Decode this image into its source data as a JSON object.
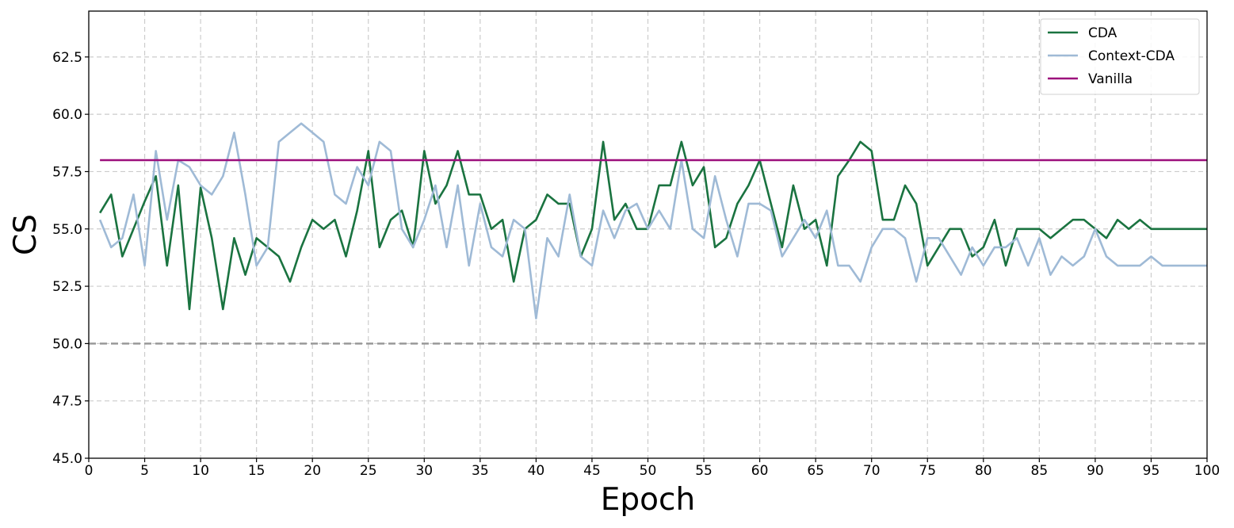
{
  "chart_data": {
    "type": "line",
    "xlabel": "Epoch",
    "ylabel": "CS",
    "xlim": [
      0,
      100
    ],
    "ylim": [
      45,
      64.5
    ],
    "xticks": [
      0,
      5,
      10,
      15,
      20,
      25,
      30,
      35,
      40,
      45,
      50,
      55,
      60,
      65,
      70,
      75,
      80,
      85,
      90,
      95,
      100
    ],
    "yticks": [
      45.0,
      47.5,
      50.0,
      52.5,
      55.0,
      57.5,
      60.0,
      62.5
    ],
    "ytick_labels": [
      "45.0",
      "47.5",
      "50.0",
      "52.5",
      "55.0",
      "57.5",
      "60.0",
      "62.5"
    ],
    "grid": true,
    "legend_position": "top-right",
    "reference_line": {
      "y": 50.0,
      "style": "dashed",
      "color": "#999999"
    },
    "series": [
      {
        "name": "CDA",
        "color": "#1a7340",
        "x": [
          1,
          2,
          3,
          4,
          5,
          6,
          7,
          8,
          9,
          10,
          11,
          12,
          13,
          14,
          15,
          16,
          17,
          18,
          19,
          20,
          21,
          22,
          23,
          24,
          25,
          26,
          27,
          28,
          29,
          30,
          31,
          32,
          33,
          34,
          35,
          36,
          37,
          38,
          39,
          40,
          41,
          42,
          43,
          44,
          45,
          46,
          47,
          48,
          49,
          50,
          51,
          52,
          53,
          54,
          55,
          56,
          57,
          58,
          59,
          60,
          61,
          62,
          63,
          64,
          65,
          66,
          67,
          68,
          69,
          70,
          71,
          72,
          73,
          74,
          75,
          76,
          77,
          78,
          79,
          80,
          81,
          82,
          83,
          84,
          85,
          86,
          87,
          88,
          89,
          90,
          91,
          92,
          93,
          94,
          95,
          96,
          97,
          98,
          99,
          100
        ],
        "values": [
          55.7,
          56.5,
          53.8,
          55.0,
          56.2,
          57.3,
          53.4,
          56.9,
          51.5,
          56.8,
          54.6,
          51.5,
          54.6,
          53.0,
          54.6,
          54.2,
          53.8,
          52.7,
          54.2,
          55.4,
          55.0,
          55.4,
          53.8,
          55.8,
          58.4,
          54.2,
          55.4,
          55.8,
          54.2,
          58.4,
          56.1,
          56.9,
          58.4,
          56.5,
          56.5,
          55.0,
          55.4,
          52.7,
          55.0,
          55.4,
          56.5,
          56.1,
          56.1,
          53.8,
          55.0,
          58.8,
          55.4,
          56.1,
          55.0,
          55.0,
          56.9,
          56.9,
          58.8,
          56.9,
          57.7,
          54.2,
          54.6,
          56.1,
          56.9,
          58.0,
          56.1,
          54.2,
          56.9,
          55.0,
          55.4,
          53.4,
          57.3,
          58.0,
          58.8,
          58.4,
          55.4,
          55.4,
          56.9,
          56.1,
          53.4,
          54.2,
          55.0,
          55.0,
          53.8,
          54.2,
          55.4,
          53.4,
          55.0,
          55.0,
          55.0,
          54.6,
          55.0,
          55.4,
          55.4,
          55.0,
          54.6,
          55.4,
          55.0,
          55.4,
          55.0,
          55.0,
          55.0,
          55.0,
          55.0,
          55.0
        ]
      },
      {
        "name": "Context-CDA",
        "color": "#9fbad6",
        "x": [
          1,
          2,
          3,
          4,
          5,
          6,
          7,
          8,
          9,
          10,
          11,
          12,
          13,
          14,
          15,
          16,
          17,
          18,
          19,
          20,
          21,
          22,
          23,
          24,
          25,
          26,
          27,
          28,
          29,
          30,
          31,
          32,
          33,
          34,
          35,
          36,
          37,
          38,
          39,
          40,
          41,
          42,
          43,
          44,
          45,
          46,
          47,
          48,
          49,
          50,
          51,
          52,
          53,
          54,
          55,
          56,
          57,
          58,
          59,
          60,
          61,
          62,
          63,
          64,
          65,
          66,
          67,
          68,
          69,
          70,
          71,
          72,
          73,
          74,
          75,
          76,
          77,
          78,
          79,
          80,
          81,
          82,
          83,
          84,
          85,
          86,
          87,
          88,
          89,
          90,
          91,
          92,
          93,
          94,
          95,
          96,
          97,
          98,
          99,
          100
        ],
        "values": [
          55.4,
          54.2,
          54.6,
          56.5,
          53.4,
          58.4,
          55.4,
          58.0,
          57.7,
          56.9,
          56.5,
          57.3,
          59.2,
          56.5,
          53.4,
          54.2,
          58.8,
          59.2,
          59.6,
          59.2,
          58.8,
          56.5,
          56.1,
          57.7,
          56.9,
          58.8,
          58.4,
          55.0,
          54.2,
          55.4,
          56.9,
          54.2,
          56.9,
          53.4,
          56.1,
          54.2,
          53.8,
          55.4,
          55.0,
          51.1,
          54.6,
          53.8,
          56.5,
          53.8,
          53.4,
          55.8,
          54.6,
          55.8,
          56.1,
          55.0,
          55.8,
          55.0,
          58.0,
          55.0,
          54.6,
          57.3,
          55.4,
          53.8,
          56.1,
          56.1,
          55.8,
          53.8,
          54.6,
          55.4,
          54.6,
          55.8,
          53.4,
          53.4,
          52.7,
          54.2,
          55.0,
          55.0,
          54.6,
          52.7,
          54.6,
          54.6,
          53.8,
          53.0,
          54.2,
          53.4,
          54.2,
          54.2,
          54.6,
          53.4,
          54.6,
          53.0,
          53.8,
          53.4,
          53.8,
          55.0,
          53.8,
          53.4,
          53.4,
          53.4,
          53.8,
          53.4,
          53.4,
          53.4,
          53.4,
          53.4
        ]
      },
      {
        "name": "Vanilla",
        "color": "#9c0f7c",
        "x": [
          1,
          100
        ],
        "values": [
          58.0,
          58.0
        ]
      }
    ]
  }
}
